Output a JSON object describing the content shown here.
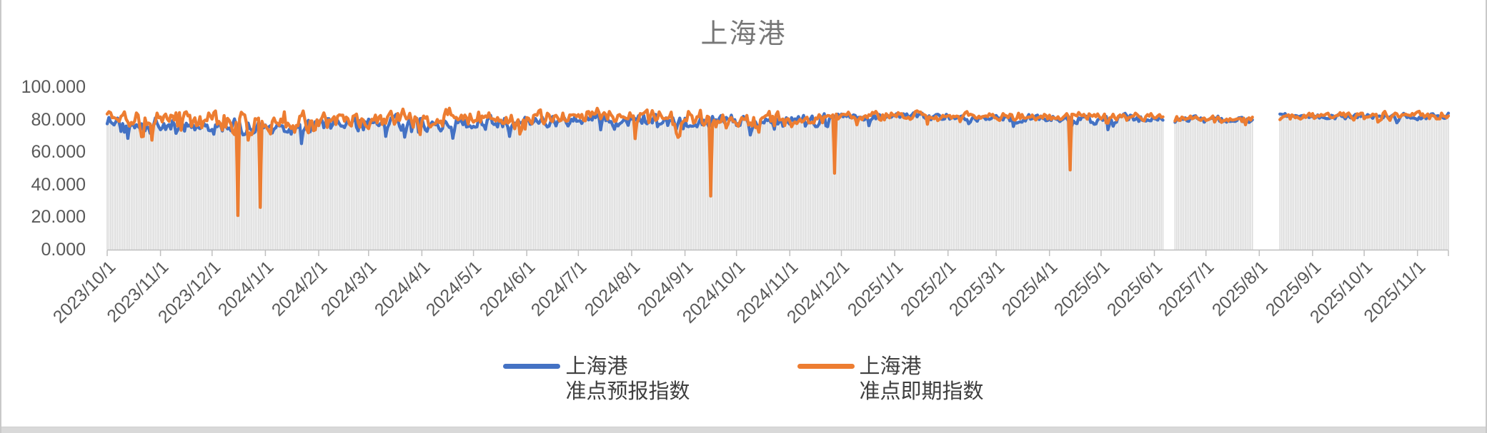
{
  "window": {
    "bg": "#ffffff",
    "border_color": "#c9c9c9",
    "bottom_strip_color": "#d9d9d9"
  },
  "chart_data": {
    "type": "line",
    "title": "上海港",
    "title_color": "#777777",
    "x_start_date": "2023/10/1",
    "x_end_date": "2025/11/19",
    "total_days": 780,
    "ylim": [
      0,
      100
    ],
    "grid": false,
    "legend_position": "bottom",
    "ytick_labels": [
      "100.000",
      "80.000",
      "60.000",
      "40.000",
      "20.000",
      "0.000"
    ],
    "ytick_values": [
      100,
      80,
      60,
      40,
      20,
      0
    ],
    "xticks": [
      {
        "label": "2023/10/1",
        "day": 0
      },
      {
        "label": "2023/11/1",
        "day": 31
      },
      {
        "label": "2023/12/1",
        "day": 61
      },
      {
        "label": "2024/1/1",
        "day": 92
      },
      {
        "label": "2024/2/1",
        "day": 123
      },
      {
        "label": "2024/3/1",
        "day": 152
      },
      {
        "label": "2024/4/1",
        "day": 183
      },
      {
        "label": "2024/5/1",
        "day": 213
      },
      {
        "label": "2024/6/1",
        "day": 244
      },
      {
        "label": "2024/7/1",
        "day": 274
      },
      {
        "label": "2024/8/1",
        "day": 305
      },
      {
        "label": "2024/9/1",
        "day": 336
      },
      {
        "label": "2024/10/1",
        "day": 366
      },
      {
        "label": "2024/11/1",
        "day": 397
      },
      {
        "label": "2024/12/1",
        "day": 427
      },
      {
        "label": "2025/1/1",
        "day": 458
      },
      {
        "label": "2025/2/1",
        "day": 489
      },
      {
        "label": "2025/3/1",
        "day": 517
      },
      {
        "label": "2025/4/1",
        "day": 548
      },
      {
        "label": "2025/5/1",
        "day": 578
      },
      {
        "label": "2025/6/1",
        "day": 609
      },
      {
        "label": "2025/7/1",
        "day": 639
      },
      {
        "label": "2025/8/1",
        "day": 670
      },
      {
        "label": "2025/9/1",
        "day": 701
      },
      {
        "label": "2025/10/1",
        "day": 731
      },
      {
        "label": "2025/11/1",
        "day": 762
      }
    ],
    "gaps": [
      [
        615,
        620
      ],
      [
        667,
        681
      ]
    ],
    "axis_color": "#bfbfbf",
    "tick_label_color": "#595959",
    "legend_text_color": "#3f3f3f",
    "background_bars": {
      "color": "#d9d9d9"
    },
    "noise_seed": 20231001,
    "series": [
      {
        "name": "上海港 准点预报指数",
        "legend_lines": [
          "上海港",
          "准点预报指数"
        ],
        "color": "#4472C4",
        "periods": [
          {
            "from": 0,
            "to": 60,
            "mean": 77,
            "amp": 6,
            "spike_p": 0.05,
            "spike_mag": 8
          },
          {
            "from": 61,
            "to": 122,
            "mean": 76,
            "amp": 6.5,
            "spike_p": 0.06,
            "spike_mag": 8
          },
          {
            "from": 123,
            "to": 243,
            "mean": 78,
            "amp": 6,
            "spike_p": 0.04,
            "spike_mag": 8
          },
          {
            "from": 244,
            "to": 330,
            "mean": 80,
            "amp": 5,
            "spike_p": 0.04,
            "spike_mag": 8
          },
          {
            "from": 331,
            "to": 420,
            "mean": 78.5,
            "amp": 5.5,
            "spike_p": 0.05,
            "spike_mag": 8
          },
          {
            "from": 421,
            "to": 500,
            "mean": 82,
            "amp": 3,
            "spike_p": 0.02,
            "spike_mag": 4
          },
          {
            "from": 501,
            "to": 614,
            "mean": 80.5,
            "amp": 3.5,
            "spike_p": 0.06,
            "spike_mag": 6
          },
          {
            "from": 615,
            "to": 666,
            "mean": 80,
            "amp": 3,
            "spike_p": 0.04,
            "spike_mag": 5
          },
          {
            "from": 667,
            "to": 780,
            "mean": 82,
            "amp": 2.5,
            "spike_p": 0.03,
            "spike_mag": 4
          }
        ],
        "anomalies": []
      },
      {
        "name": "上海港 准点即期指数",
        "legend_lines": [
          "上海港",
          "准点即期指数"
        ],
        "color": "#ED7D31",
        "periods": [
          {
            "from": 0,
            "to": 60,
            "mean": 80,
            "amp": 7,
            "spike_p": 0.06,
            "spike_mag": 10
          },
          {
            "from": 61,
            "to": 122,
            "mean": 78,
            "amp": 8,
            "spike_p": 0.08,
            "spike_mag": 11
          },
          {
            "from": 123,
            "to": 243,
            "mean": 80,
            "amp": 7,
            "spike_p": 0.06,
            "spike_mag": 10
          },
          {
            "from": 244,
            "to": 330,
            "mean": 82,
            "amp": 6,
            "spike_p": 0.05,
            "spike_mag": 11
          },
          {
            "from": 331,
            "to": 420,
            "mean": 80,
            "amp": 6.5,
            "spike_p": 0.05,
            "spike_mag": 9
          },
          {
            "from": 421,
            "to": 500,
            "mean": 82.5,
            "amp": 3.5,
            "spike_p": 0.03,
            "spike_mag": 5
          },
          {
            "from": 501,
            "to": 614,
            "mean": 82,
            "amp": 3,
            "spike_p": 0.03,
            "spike_mag": 5
          },
          {
            "from": 615,
            "to": 666,
            "mean": 80.5,
            "amp": 3,
            "spike_p": 0.04,
            "spike_mag": 5
          },
          {
            "from": 667,
            "to": 780,
            "mean": 82.5,
            "amp": 3,
            "spike_p": 0.03,
            "spike_mag": 4
          }
        ],
        "anomalies": [
          {
            "day": 76,
            "value": 21
          },
          {
            "day": 89,
            "value": 26
          },
          {
            "day": 351,
            "value": 33
          },
          {
            "day": 423,
            "value": 47
          },
          {
            "day": 560,
            "value": 49
          }
        ]
      }
    ]
  }
}
